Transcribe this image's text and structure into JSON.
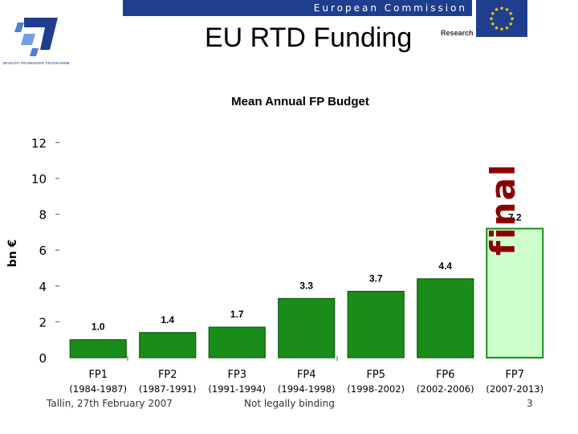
{
  "header": {
    "title": "EU RTD Funding",
    "commission": "European Commission",
    "research": "Research",
    "logo_text": "SEVENTH FRAMEWORK PROGRAMME",
    "brand_color": "#1f3f8e",
    "flag_star_color": "#ffdd00"
  },
  "footer": {
    "left": "Tallin, 27th February 2007",
    "center": "Not legally binding",
    "page": "3"
  },
  "chart_data": {
    "type": "bar",
    "title": "Mean Annual FP Budget",
    "ylabel": "bn €",
    "xlabel": "",
    "ylim": [
      0,
      12
    ],
    "yticks": [
      0,
      2,
      4,
      6,
      8,
      10,
      12
    ],
    "categories": [
      "FP1",
      "FP2",
      "FP3",
      "FP4",
      "FP5",
      "FP6",
      "FP7"
    ],
    "periods": [
      "(1984-1987)",
      "(1987-1991)",
      "(1991-1994)",
      "(1994-1998)",
      "(1998-2002)",
      "(2002-2006)",
      "(2007-2013)"
    ],
    "values": [
      1.0,
      1.4,
      1.7,
      3.3,
      3.7,
      4.4,
      7.2
    ],
    "value_labels": [
      "1.0",
      "1.4",
      "1.7",
      "3.3",
      "3.7",
      "4.4",
      "7.2"
    ],
    "bar_color": "#1a8c1a",
    "highlight_color": "#ccffcc",
    "highlight_index": 6,
    "annotation": "final",
    "annotation_color": "#8b0000",
    "grid": false,
    "legend": "none"
  }
}
